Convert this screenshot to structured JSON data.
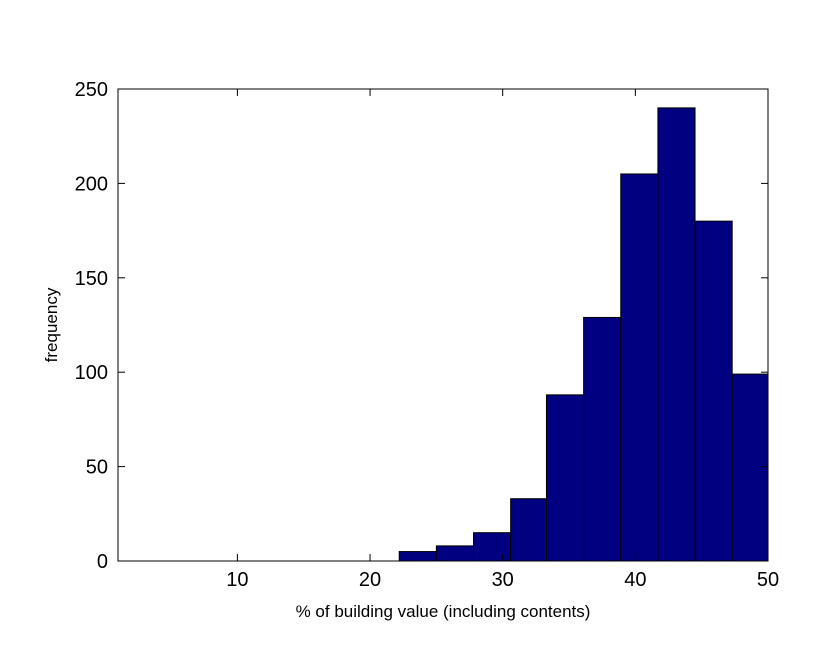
{
  "chart_data": {
    "type": "bar",
    "title": "",
    "xlabel": "% of building value (including contents)",
    "ylabel": "frequency",
    "xlim": [
      1,
      50
    ],
    "ylim": [
      0,
      250
    ],
    "xticks": [
      10,
      20,
      30,
      40,
      50
    ],
    "yticks": [
      0,
      50,
      100,
      150,
      200,
      250
    ],
    "bin_edges": [
      22.2,
      25.0,
      27.8,
      30.6,
      33.3,
      36.1,
      38.9,
      41.7,
      44.5,
      47.3,
      50
    ],
    "values": [
      5,
      8,
      15,
      33,
      88,
      129,
      205,
      240,
      180,
      99
    ],
    "bar_color": "#000080",
    "edge_color": "#000000",
    "grid": false,
    "box": true
  }
}
